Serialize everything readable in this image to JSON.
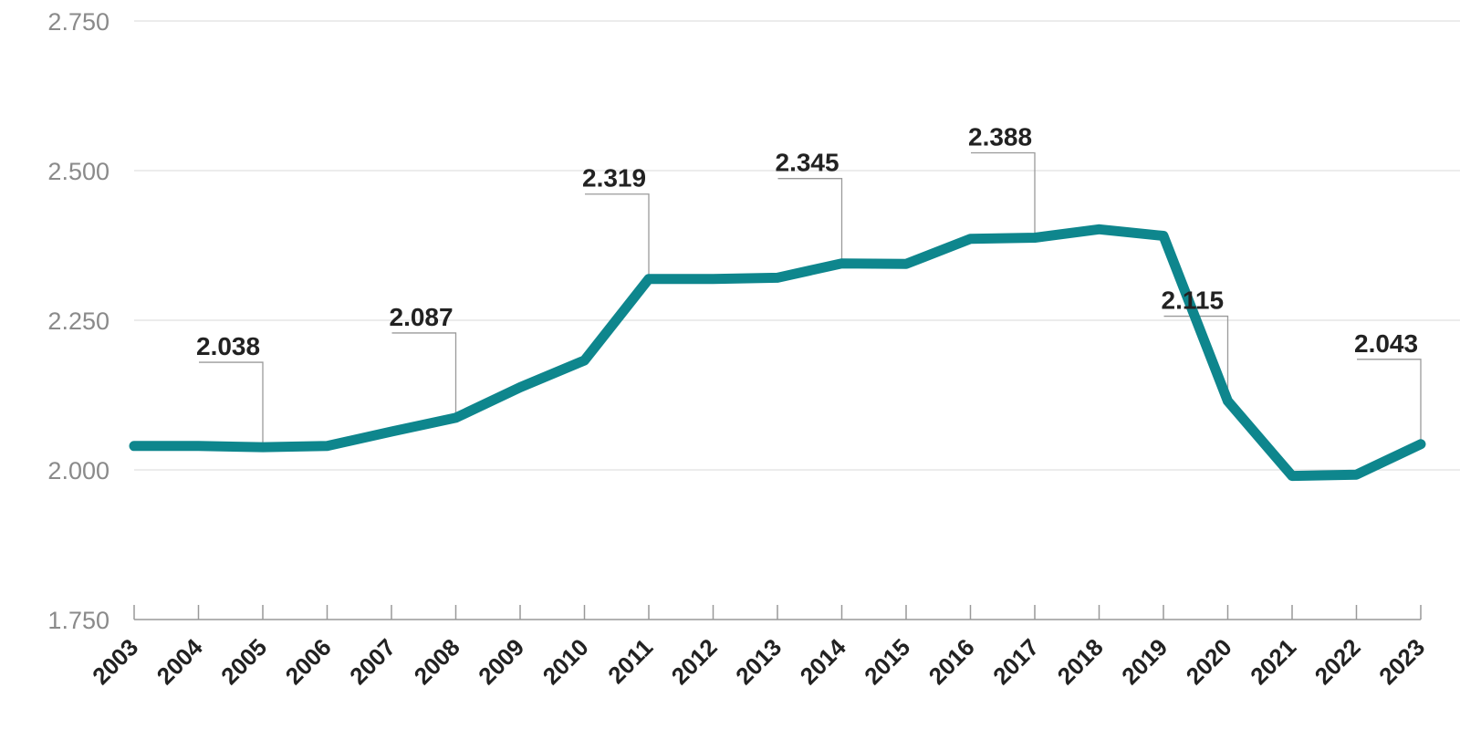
{
  "chart_data": {
    "type": "line",
    "x": [
      "2003",
      "2004",
      "2005",
      "2006",
      "2007",
      "2008",
      "2009",
      "2010",
      "2011",
      "2012",
      "2013",
      "2014",
      "2015",
      "2016",
      "2017",
      "2018",
      "2019",
      "2020",
      "2021",
      "2022",
      "2023"
    ],
    "series": [
      {
        "values": [
          2040,
          2040,
          2038,
          2040,
          2064,
          2087,
          2138,
          2183,
          2319,
          2319,
          2321,
          2345,
          2344,
          2386,
          2388,
          2402,
          2391,
          2115,
          1990,
          1992,
          2043
        ],
        "color": "#0e868d"
      }
    ],
    "y_ticks": [
      "1.750",
      "2.000",
      "2.250",
      "2.500",
      "2.750"
    ],
    "ylim": [
      1750,
      2750
    ],
    "grid": true,
    "annotations": [
      {
        "index": 2,
        "label": "2.038"
      },
      {
        "index": 5,
        "label": "2.087"
      },
      {
        "index": 8,
        "label": "2.319"
      },
      {
        "index": 11,
        "label": "2.345"
      },
      {
        "index": 14,
        "label": "2.388"
      },
      {
        "index": 17,
        "label": "2.115"
      },
      {
        "index": 20,
        "label": "2.043"
      }
    ]
  }
}
